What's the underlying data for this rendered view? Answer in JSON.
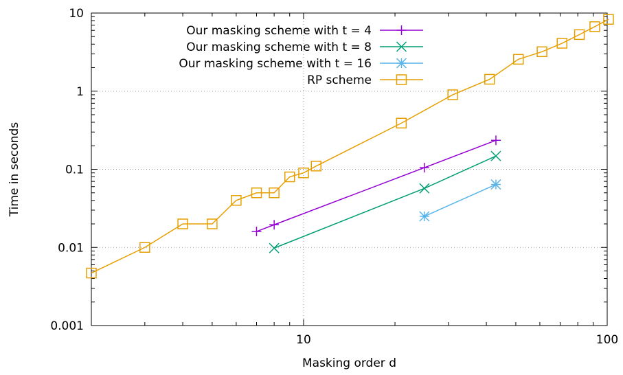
{
  "chart_data": {
    "type": "line",
    "xscale": "log",
    "yscale": "log",
    "xlim": [
      2,
      100
    ],
    "ylim": [
      0.001,
      10
    ],
    "xlabel": "Masking order d",
    "ylabel": "Time in seconds",
    "grid": true,
    "legend_position": "top-left",
    "x_ticks": [
      {
        "value": 10,
        "label": "10"
      },
      {
        "value": 100,
        "label": "100"
      }
    ],
    "y_ticks": [
      {
        "value": 0.001,
        "label": "0.001"
      },
      {
        "value": 0.01,
        "label": "0.01"
      },
      {
        "value": 0.1,
        "label": "0.1"
      },
      {
        "value": 1,
        "label": "1"
      },
      {
        "value": 10,
        "label": "10"
      }
    ],
    "series": [
      {
        "name": "Our masking scheme with t = 4",
        "color": "#9400d3",
        "marker": "plus",
        "x": [
          7,
          8,
          25,
          43
        ],
        "y": [
          0.016,
          0.0195,
          0.105,
          0.235
        ]
      },
      {
        "name": "Our masking scheme with t = 8",
        "color": "#009e73",
        "marker": "cross",
        "x": [
          8,
          25,
          43
        ],
        "y": [
          0.0098,
          0.057,
          0.148
        ]
      },
      {
        "name": "Our masking scheme with t = 16",
        "color": "#56b4e9",
        "marker": "star",
        "x": [
          25,
          43
        ],
        "y": [
          0.025,
          0.064
        ]
      },
      {
        "name": "RP scheme",
        "color": "#e69f00",
        "marker": "square",
        "x": [
          2,
          3,
          4,
          5,
          6,
          7,
          8,
          9,
          10,
          11,
          21,
          31,
          41,
          51,
          61,
          71,
          81,
          91,
          101
        ],
        "y": [
          0.0047,
          0.01,
          0.02,
          0.02,
          0.04,
          0.05,
          0.05,
          0.08,
          0.09,
          0.11,
          0.39,
          0.9,
          1.42,
          2.56,
          3.2,
          4.1,
          5.3,
          6.7,
          8.3
        ]
      }
    ]
  }
}
